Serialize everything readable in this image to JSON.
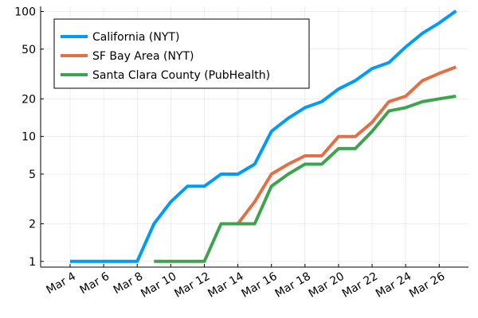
{
  "chart_data": {
    "type": "line",
    "title": "",
    "xlabel": "",
    "ylabel": "",
    "y_scale": "log",
    "ylim": [
      0.9,
      110
    ],
    "grid": true,
    "legend_position": "top-left",
    "x_tick_labels": [
      "Mar 4",
      "Mar 6",
      "Mar 8",
      "Mar 10",
      "Mar 12",
      "Mar 14",
      "Mar 16",
      "Mar 18",
      "Mar 20",
      "Mar 22",
      "Mar 24",
      "Mar 26"
    ],
    "y_ticks": [
      1,
      2,
      5,
      10,
      20,
      50,
      100
    ],
    "y_tick_labels": [
      "1",
      "2",
      "5",
      "10",
      "20",
      "50",
      "100"
    ],
    "series": [
      {
        "name": "California (NYT)",
        "color": "#009af9",
        "points": [
          [
            "Mar 4",
            1
          ],
          [
            "Mar 5",
            1
          ],
          [
            "Mar 6",
            1
          ],
          [
            "Mar 7",
            1
          ],
          [
            "Mar 8",
            1
          ],
          [
            "Mar 9",
            2
          ],
          [
            "Mar 10",
            3
          ],
          [
            "Mar 11",
            4
          ],
          [
            "Mar 12",
            4
          ],
          [
            "Mar 13",
            5
          ],
          [
            "Mar 14",
            5
          ],
          [
            "Mar 15",
            6
          ],
          [
            "Mar 16",
            11
          ],
          [
            "Mar 17",
            14
          ],
          [
            "Mar 18",
            17
          ],
          [
            "Mar 19",
            19
          ],
          [
            "Mar 20",
            24
          ],
          [
            "Mar 21",
            28
          ],
          [
            "Mar 22",
            35
          ],
          [
            "Mar 23",
            39
          ],
          [
            "Mar 24",
            52
          ],
          [
            "Mar 25",
            67
          ],
          [
            "Mar 26",
            81
          ],
          [
            "Mar 27",
            101
          ]
        ]
      },
      {
        "name": "SF Bay Area (NYT)",
        "color": "#e26f46",
        "points": [
          [
            "Mar 13",
            2
          ],
          [
            "Mar 14",
            2
          ],
          [
            "Mar 15",
            3
          ],
          [
            "Mar 16",
            5
          ],
          [
            "Mar 17",
            6
          ],
          [
            "Mar 18",
            7
          ],
          [
            "Mar 19",
            7
          ],
          [
            "Mar 20",
            10
          ],
          [
            "Mar 21",
            10
          ],
          [
            "Mar 22",
            13
          ],
          [
            "Mar 23",
            19
          ],
          [
            "Mar 24",
            21
          ],
          [
            "Mar 25",
            28
          ],
          [
            "Mar 26",
            32
          ],
          [
            "Mar 27",
            36
          ]
        ]
      },
      {
        "name": "Santa Clara County (PubHealth)",
        "color": "#3da44d",
        "points": [
          [
            "Mar 9",
            1
          ],
          [
            "Mar 10",
            1
          ],
          [
            "Mar 11",
            1
          ],
          [
            "Mar 12",
            1
          ],
          [
            "Mar 13",
            2
          ],
          [
            "Mar 14",
            2
          ],
          [
            "Mar 15",
            2
          ],
          [
            "Mar 16",
            4
          ],
          [
            "Mar 17",
            5
          ],
          [
            "Mar 18",
            6
          ],
          [
            "Mar 19",
            6
          ],
          [
            "Mar 20",
            8
          ],
          [
            "Mar 21",
            8
          ],
          [
            "Mar 22",
            11
          ],
          [
            "Mar 23",
            16
          ],
          [
            "Mar 24",
            17
          ],
          [
            "Mar 25",
            19
          ],
          [
            "Mar 26",
            20
          ],
          [
            "Mar 27",
            21
          ]
        ]
      }
    ]
  }
}
